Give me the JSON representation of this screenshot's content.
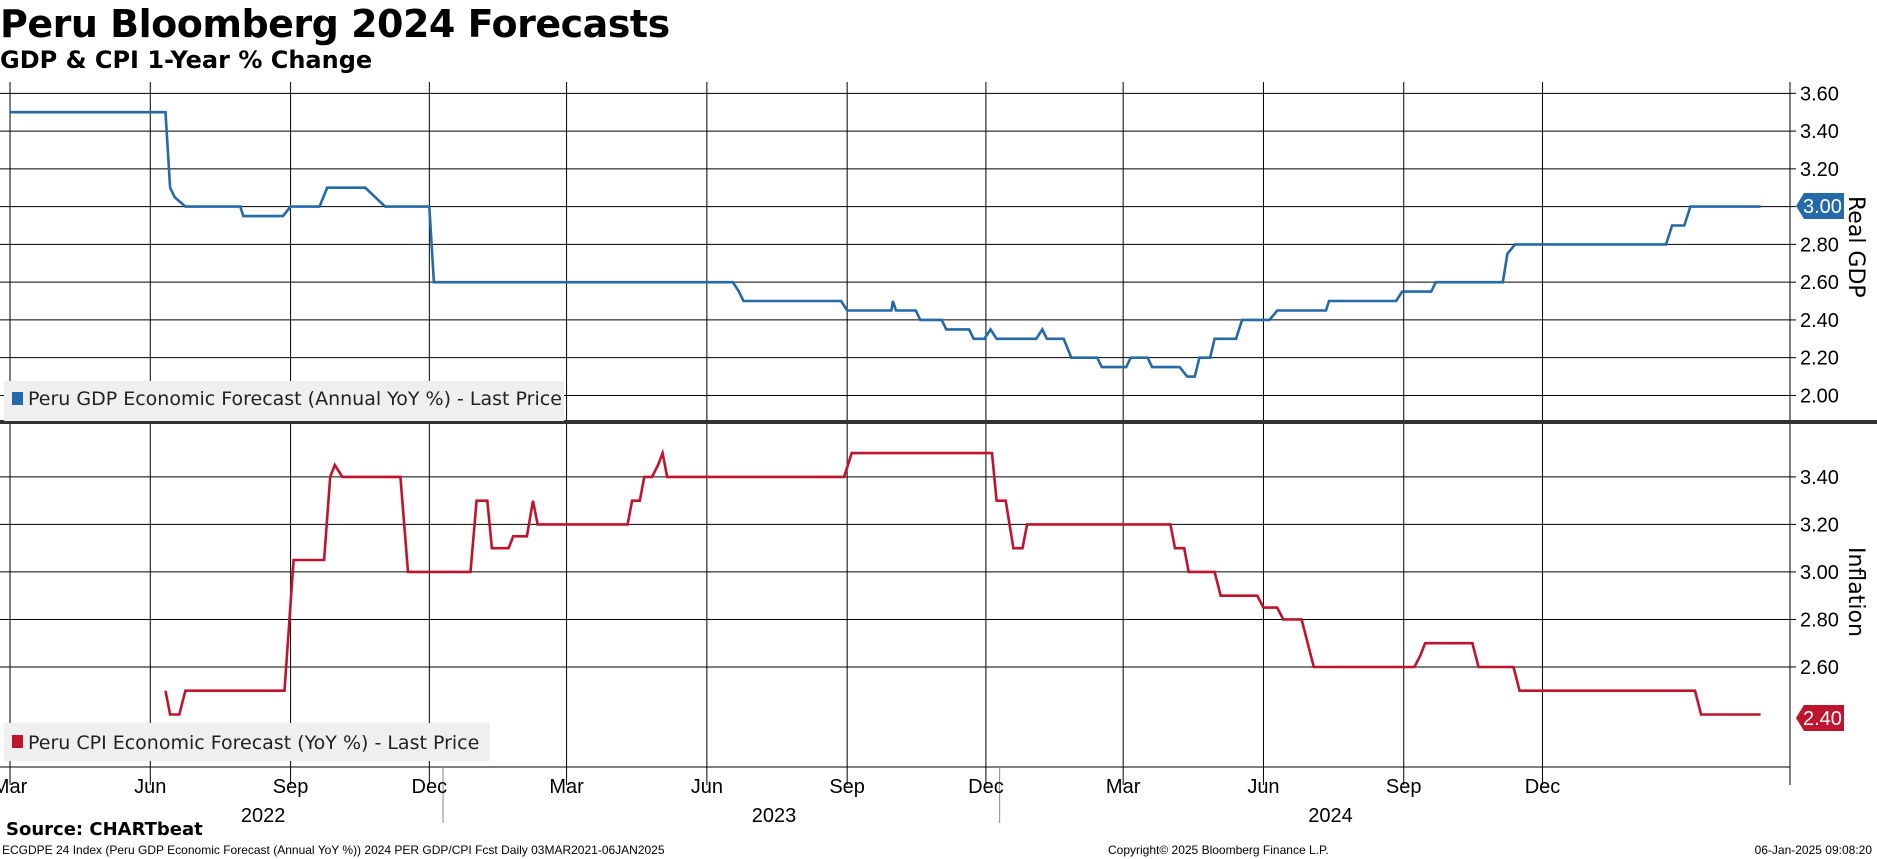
{
  "header": {
    "title": "Peru Bloomberg 2024 Forecasts",
    "subtitle": "GDP & CPI 1-Year % Change"
  },
  "footer": {
    "source": "Source: CHARTbeat",
    "ticker_line": "ECGDPE 24 Index (Peru GDP Economic Forecast (Annual YoY %)) 2024 PER GDP/CPI Fcst  Daily 03MAR2021-06JAN2025",
    "copyright": "Copyright© 2025 Bloomberg Finance L.P.",
    "timestamp": "06-Jan-2025 09:08:20"
  },
  "colors": {
    "gdp": "#2469a8",
    "cpi": "#c0142e",
    "grid": "#000000",
    "legend_bg": "#efefef",
    "divider": "#333333"
  },
  "chart_data": [
    {
      "type": "line",
      "panel": "top",
      "ylabel": "Real GDP",
      "ylim": [
        1.87,
        3.66
      ],
      "yticks": [
        "2.00",
        "2.20",
        "2.40",
        "2.60",
        "2.80",
        "3.00",
        "3.20",
        "3.40",
        "3.60"
      ],
      "last_value_label": "3.00",
      "legend": "Peru GDP Economic Forecast (Annual YoY %) - Last Price",
      "series": [
        {
          "name": "Peru GDP Economic Forecast (Annual YoY %) - Last Price",
          "step": true,
          "points": [
            [
              "2021-03-01",
              3.5
            ],
            [
              "2021-06-11",
              3.5
            ],
            [
              "2021-06-14",
              3.1
            ],
            [
              "2021-06-17",
              3.05
            ],
            [
              "2021-06-24",
              3.0
            ],
            [
              "2021-07-30",
              3.0
            ],
            [
              "2021-08-01",
              2.95
            ],
            [
              "2021-08-27",
              2.95
            ],
            [
              "2021-09-01",
              3.0
            ],
            [
              "2021-09-20",
              3.0
            ],
            [
              "2021-09-25",
              3.1
            ],
            [
              "2021-10-16",
              3.1
            ],
            [
              "2021-10-20",
              3.1
            ],
            [
              "2021-11-02",
              3.0
            ],
            [
              "2021-12-01",
              3.0
            ],
            [
              "2021-12-04",
              2.6
            ],
            [
              "2022-04-01",
              2.6
            ],
            [
              "2022-06-01",
              2.6
            ],
            [
              "2022-06-18",
              2.6
            ],
            [
              "2022-06-22",
              2.55
            ],
            [
              "2022-06-25",
              2.5
            ],
            [
              "2022-08-28",
              2.5
            ],
            [
              "2022-09-01",
              2.45
            ],
            [
              "2022-09-30",
              2.45
            ],
            [
              "2022-10-01",
              2.5
            ],
            [
              "2022-10-03",
              2.45
            ],
            [
              "2022-10-16",
              2.45
            ],
            [
              "2022-10-19",
              2.4
            ],
            [
              "2022-11-02",
              2.4
            ],
            [
              "2022-11-05",
              2.35
            ],
            [
              "2022-11-20",
              2.35
            ],
            [
              "2022-11-23",
              2.3
            ],
            [
              "2022-11-30",
              2.3
            ],
            [
              "2022-12-04",
              2.35
            ],
            [
              "2022-12-08",
              2.3
            ],
            [
              "2023-01-03",
              2.3
            ],
            [
              "2023-01-07",
              2.35
            ],
            [
              "2023-01-10",
              2.3
            ],
            [
              "2023-01-21",
              2.3
            ],
            [
              "2023-01-26",
              2.2
            ],
            [
              "2023-02-12",
              2.2
            ],
            [
              "2023-02-15",
              2.15
            ],
            [
              "2023-03-03",
              2.15
            ],
            [
              "2023-03-06",
              2.2
            ],
            [
              "2023-03-17",
              2.2
            ],
            [
              "2023-03-20",
              2.15
            ],
            [
              "2023-04-07",
              2.15
            ],
            [
              "2023-04-12",
              2.1
            ],
            [
              "2023-04-17",
              2.1
            ],
            [
              "2023-04-20",
              2.2
            ],
            [
              "2023-04-27",
              2.2
            ],
            [
              "2023-04-30",
              2.3
            ],
            [
              "2023-05-14",
              2.3
            ],
            [
              "2023-05-18",
              2.4
            ],
            [
              "2023-06-05",
              2.4
            ],
            [
              "2023-06-10",
              2.45
            ],
            [
              "2023-07-12",
              2.45
            ],
            [
              "2023-07-14",
              2.5
            ],
            [
              "2023-08-27",
              2.5
            ],
            [
              "2023-08-31",
              2.55
            ],
            [
              "2023-09-19",
              2.55
            ],
            [
              "2023-09-22",
              2.6
            ],
            [
              "2023-11-05",
              2.6
            ],
            [
              "2023-11-08",
              2.75
            ],
            [
              "2023-11-13",
              2.8
            ],
            [
              "2024-02-20",
              2.8
            ],
            [
              "2024-02-24",
              2.9
            ],
            [
              "2024-03-03",
              2.9
            ],
            [
              "2024-03-07",
              3.0
            ],
            [
              "2024-04-22",
              3.0
            ]
          ]
        }
      ]
    },
    {
      "type": "line",
      "panel": "bottom",
      "ylabel": "Inflation",
      "ylim": [
        2.2,
        3.61
      ],
      "yticks": [
        "2.60",
        "2.80",
        "3.00",
        "3.20",
        "3.40"
      ],
      "last_value_label": "2.40",
      "legend": "Peru CPI Economic Forecast (YoY %) - Last Price",
      "series": [
        {
          "name": "Peru CPI Economic Forecast (YoY %) - Last Price",
          "step": true,
          "points": [
            [
              "2021-06-11",
              2.5
            ],
            [
              "2021-06-14",
              2.4
            ],
            [
              "2021-06-20",
              2.4
            ],
            [
              "2021-06-24",
              2.5
            ],
            [
              "2021-08-28",
              2.5
            ],
            [
              "2021-09-03",
              3.05
            ],
            [
              "2021-09-23",
              3.05
            ],
            [
              "2021-09-27",
              3.4
            ],
            [
              "2021-09-30",
              3.45
            ],
            [
              "2021-10-05",
              3.4
            ],
            [
              "2021-11-12",
              3.4
            ],
            [
              "2021-11-17",
              3.0
            ],
            [
              "2021-12-28",
              3.0
            ],
            [
              "2022-01-01",
              3.3
            ],
            [
              "2022-01-08",
              3.3
            ],
            [
              "2022-01-11",
              3.1
            ],
            [
              "2022-01-22",
              3.1
            ],
            [
              "2022-01-25",
              3.15
            ],
            [
              "2022-02-03",
              3.15
            ],
            [
              "2022-02-07",
              3.3
            ],
            [
              "2022-02-10",
              3.2
            ],
            [
              "2022-04-10",
              3.2
            ],
            [
              "2022-04-13",
              3.3
            ],
            [
              "2022-04-18",
              3.3
            ],
            [
              "2022-04-21",
              3.4
            ],
            [
              "2022-04-26",
              3.4
            ],
            [
              "2022-04-30",
              3.45
            ],
            [
              "2022-05-03",
              3.5
            ],
            [
              "2022-05-06",
              3.4
            ],
            [
              "2022-05-20",
              3.4
            ],
            [
              "2022-08-30",
              3.4
            ],
            [
              "2022-09-04",
              3.5
            ],
            [
              "2022-12-05",
              3.5
            ],
            [
              "2022-12-08",
              3.3
            ],
            [
              "2022-12-14",
              3.3
            ],
            [
              "2022-12-19",
              3.1
            ],
            [
              "2022-12-25",
              3.1
            ],
            [
              "2022-12-28",
              3.2
            ],
            [
              "2023-04-01",
              3.2
            ],
            [
              "2023-04-04",
              3.1
            ],
            [
              "2023-04-10",
              3.1
            ],
            [
              "2023-04-13",
              3.0
            ],
            [
              "2023-04-30",
              3.0
            ],
            [
              "2023-05-04",
              2.9
            ],
            [
              "2023-05-28",
              2.9
            ],
            [
              "2023-06-01",
              2.85
            ],
            [
              "2023-06-10",
              2.85
            ],
            [
              "2023-06-14",
              2.8
            ],
            [
              "2023-06-26",
              2.8
            ],
            [
              "2023-06-30",
              2.7
            ],
            [
              "2023-07-04",
              2.6
            ],
            [
              "2023-09-08",
              2.6
            ],
            [
              "2023-09-12",
              2.65
            ],
            [
              "2023-09-15",
              2.7
            ],
            [
              "2023-10-16",
              2.7
            ],
            [
              "2023-10-20",
              2.6
            ],
            [
              "2023-11-12",
              2.6
            ],
            [
              "2023-11-16",
              2.5
            ],
            [
              "2024-03-10",
              2.5
            ],
            [
              "2024-03-14",
              2.4
            ],
            [
              "2024-04-22",
              2.4
            ]
          ]
        }
      ]
    }
  ],
  "x_axis": {
    "months": [
      {
        "label": "Mar",
        "date": "2021-03-01"
      },
      {
        "label": "Jun",
        "date": "2021-06-01"
      },
      {
        "label": "Sep",
        "date": "2021-09-01"
      },
      {
        "label": "Dec",
        "date": "2021-12-01"
      },
      {
        "label": "Mar",
        "date": "2022-03-01"
      },
      {
        "label": "Jun",
        "date": "2022-06-01"
      },
      {
        "label": "Sep",
        "date": "2022-09-01"
      },
      {
        "label": "Dec",
        "date": "2022-12-01"
      },
      {
        "label": "Mar",
        "date": "2023-03-01"
      },
      {
        "label": "Jun",
        "date": "2023-06-01"
      },
      {
        "label": "Sep",
        "date": "2023-09-01"
      },
      {
        "label": "Dec",
        "date": "2023-12-01"
      }
    ],
    "years": [
      {
        "label": "2022",
        "date": "2021-08-14"
      },
      {
        "label": "2023",
        "date": "2022-07-15"
      },
      {
        "label": "2024",
        "date": "2023-07-15"
      }
    ],
    "year_dividers": [
      "2021-12-10",
      "2022-12-10"
    ],
    "range": [
      "2021-03-01",
      "2024-05-10"
    ]
  }
}
